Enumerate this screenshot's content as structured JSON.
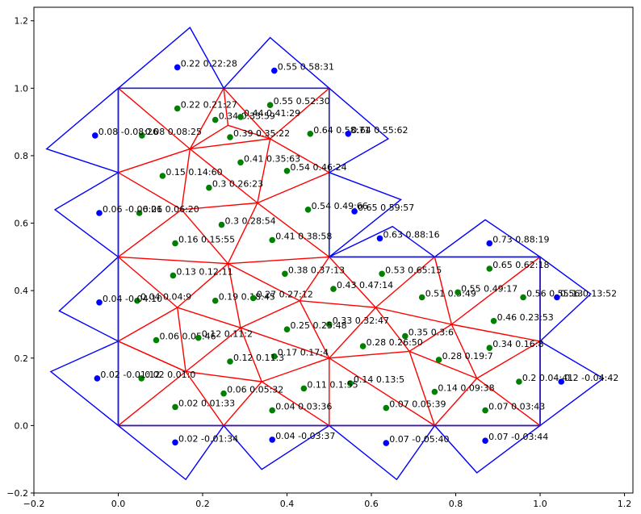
{
  "chart_data": {
    "type": "scatter",
    "title": "",
    "xlabel": "",
    "ylabel": "",
    "xlim": [
      -0.2,
      1.22
    ],
    "ylim": [
      -0.2,
      1.24
    ],
    "xticks": [
      "−0.2",
      "0.0",
      "0.2",
      "0.4",
      "0.6",
      "0.8",
      "1.0",
      "1.2"
    ],
    "xtick_values": [
      -0.2,
      0.0,
      0.2,
      0.4,
      0.6,
      0.8,
      1.0,
      1.2
    ],
    "yticks": [
      "−0.2",
      "0.0",
      "0.2",
      "0.4",
      "0.6",
      "0.8",
      "1.0",
      "1.2"
    ],
    "ytick_values": [
      -0.2,
      0.0,
      0.2,
      0.4,
      0.6,
      0.8,
      1.0,
      1.2
    ],
    "grid": false,
    "colors": {
      "domain_boundary": "#1f1fbf",
      "outer_triangles": "#0000ff",
      "inner_mesh": "#ff0000",
      "interior_points": "#008000",
      "outer_points": "#0000ff"
    },
    "domain_boundary": [
      [
        0,
        0
      ],
      [
        0,
        1
      ],
      [
        0.5,
        1
      ],
      [
        0.5,
        0.5
      ],
      [
        1,
        0.5
      ],
      [
        1,
        0
      ],
      [
        0,
        0
      ]
    ],
    "red_edges": [
      [
        [
          0,
          0
        ],
        [
          0.25,
          0
        ]
      ],
      [
        [
          0.25,
          0
        ],
        [
          0.5,
          0
        ]
      ],
      [
        [
          0.5,
          0
        ],
        [
          0.75,
          0
        ]
      ],
      [
        [
          0.75,
          0
        ],
        [
          1,
          0
        ]
      ],
      [
        [
          1,
          0
        ],
        [
          1,
          0.25
        ]
      ],
      [
        [
          1,
          0.25
        ],
        [
          1,
          0.5
        ]
      ],
      [
        [
          1,
          0.5
        ],
        [
          0.75,
          0.5
        ]
      ],
      [
        [
          0.75,
          0.5
        ],
        [
          0.5,
          0.5
        ]
      ],
      [
        [
          0.5,
          0.5
        ],
        [
          0.5,
          0.75
        ]
      ],
      [
        [
          0.5,
          0.75
        ],
        [
          0.5,
          1
        ]
      ],
      [
        [
          0.5,
          1
        ],
        [
          0.25,
          1
        ]
      ],
      [
        [
          0.25,
          1
        ],
        [
          0,
          1
        ]
      ],
      [
        [
          0,
          1
        ],
        [
          0,
          0.75
        ]
      ],
      [
        [
          0,
          0.75
        ],
        [
          0,
          0.5
        ]
      ],
      [
        [
          0,
          0.5
        ],
        [
          0,
          0.25
        ]
      ],
      [
        [
          0,
          0.25
        ],
        [
          0,
          0
        ]
      ],
      [
        [
          0,
          1
        ],
        [
          0.17,
          0.82
        ]
      ],
      [
        [
          0.25,
          1
        ],
        [
          0.17,
          0.82
        ]
      ],
      [
        [
          0.25,
          1
        ],
        [
          0.26,
          0.89
        ]
      ],
      [
        [
          0.25,
          1
        ],
        [
          0.36,
          0.85
        ]
      ],
      [
        [
          0.5,
          1
        ],
        [
          0.36,
          0.85
        ]
      ],
      [
        [
          0.17,
          0.82
        ],
        [
          0.26,
          0.89
        ]
      ],
      [
        [
          0.26,
          0.89
        ],
        [
          0.36,
          0.85
        ]
      ],
      [
        [
          0.17,
          0.82
        ],
        [
          0.36,
          0.85
        ]
      ],
      [
        [
          0,
          0.75
        ],
        [
          0.17,
          0.82
        ]
      ],
      [
        [
          0,
          0.75
        ],
        [
          0.15,
          0.64
        ]
      ],
      [
        [
          0.17,
          0.82
        ],
        [
          0.15,
          0.64
        ]
      ],
      [
        [
          0.17,
          0.82
        ],
        [
          0.33,
          0.66
        ]
      ],
      [
        [
          0.36,
          0.85
        ],
        [
          0.33,
          0.66
        ]
      ],
      [
        [
          0.5,
          0.75
        ],
        [
          0.36,
          0.85
        ]
      ],
      [
        [
          0.5,
          0.75
        ],
        [
          0.33,
          0.66
        ]
      ],
      [
        [
          0.5,
          0.5
        ],
        [
          0.33,
          0.66
        ]
      ],
      [
        [
          0.15,
          0.64
        ],
        [
          0.33,
          0.66
        ]
      ],
      [
        [
          0,
          0.5
        ],
        [
          0.15,
          0.64
        ]
      ],
      [
        [
          0.15,
          0.64
        ],
        [
          0.26,
          0.48
        ]
      ],
      [
        [
          0.33,
          0.66
        ],
        [
          0.26,
          0.48
        ]
      ],
      [
        [
          0.5,
          0.5
        ],
        [
          0.26,
          0.48
        ]
      ],
      [
        [
          0,
          0.5
        ],
        [
          0.26,
          0.48
        ]
      ],
      [
        [
          0,
          0.5
        ],
        [
          0.14,
          0.35
        ]
      ],
      [
        [
          0.26,
          0.48
        ],
        [
          0.14,
          0.35
        ]
      ],
      [
        [
          0.26,
          0.48
        ],
        [
          0.43,
          0.37
        ]
      ],
      [
        [
          0.5,
          0.5
        ],
        [
          0.43,
          0.37
        ]
      ],
      [
        [
          0.43,
          0.37
        ],
        [
          0.61,
          0.35
        ]
      ],
      [
        [
          0.5,
          0.5
        ],
        [
          0.61,
          0.35
        ]
      ],
      [
        [
          0.75,
          0.5
        ],
        [
          0.61,
          0.35
        ]
      ],
      [
        [
          0.75,
          0.5
        ],
        [
          0.79,
          0.3
        ]
      ],
      [
        [
          1,
          0.5
        ],
        [
          0.79,
          0.3
        ]
      ],
      [
        [
          1,
          0.25
        ],
        [
          0.79,
          0.3
        ]
      ],
      [
        [
          0.61,
          0.35
        ],
        [
          0.79,
          0.3
        ]
      ],
      [
        [
          0.26,
          0.48
        ],
        [
          0.29,
          0.29
        ]
      ],
      [
        [
          0.14,
          0.35
        ],
        [
          0.29,
          0.29
        ]
      ],
      [
        [
          0.29,
          0.29
        ],
        [
          0.43,
          0.37
        ]
      ],
      [
        [
          0.43,
          0.37
        ],
        [
          0.5,
          0.2
        ]
      ],
      [
        [
          0.61,
          0.35
        ],
        [
          0.5,
          0.2
        ]
      ],
      [
        [
          0.29,
          0.29
        ],
        [
          0.5,
          0.2
        ]
      ],
      [
        [
          0.61,
          0.35
        ],
        [
          0.69,
          0.22
        ]
      ],
      [
        [
          0.79,
          0.3
        ],
        [
          0.69,
          0.22
        ]
      ],
      [
        [
          0.5,
          0.2
        ],
        [
          0.69,
          0.22
        ]
      ],
      [
        [
          0,
          0.25
        ],
        [
          0.14,
          0.35
        ]
      ],
      [
        [
          0,
          0.25
        ],
        [
          0.16,
          0.16
        ]
      ],
      [
        [
          0.14,
          0.35
        ],
        [
          0.16,
          0.16
        ]
      ],
      [
        [
          0.29,
          0.29
        ],
        [
          0.16,
          0.16
        ]
      ],
      [
        [
          0.29,
          0.29
        ],
        [
          0.34,
          0.13
        ]
      ],
      [
        [
          0.16,
          0.16
        ],
        [
          0.34,
          0.13
        ]
      ],
      [
        [
          0.5,
          0.2
        ],
        [
          0.34,
          0.13
        ]
      ],
      [
        [
          0.5,
          0.2
        ],
        [
          0.5,
          0
        ]
      ],
      [
        [
          0.34,
          0.13
        ],
        [
          0.5,
          0
        ]
      ],
      [
        [
          0.34,
          0.13
        ],
        [
          0.25,
          0
        ]
      ],
      [
        [
          0.16,
          0.16
        ],
        [
          0.25,
          0
        ]
      ],
      [
        [
          0,
          0.25
        ],
        [
          0.16,
          0.16
        ]
      ],
      [
        [
          0,
          0
        ],
        [
          0.16,
          0.16
        ]
      ],
      [
        [
          0.5,
          0.2
        ],
        [
          0.75,
          0
        ]
      ],
      [
        [
          0.69,
          0.22
        ],
        [
          0.75,
          0
        ]
      ],
      [
        [
          0.69,
          0.22
        ],
        [
          0.85,
          0.14
        ]
      ],
      [
        [
          0.79,
          0.3
        ],
        [
          0.85,
          0.14
        ]
      ],
      [
        [
          1,
          0.25
        ],
        [
          0.85,
          0.14
        ]
      ],
      [
        [
          1,
          0
        ],
        [
          0.85,
          0.14
        ]
      ],
      [
        [
          0.75,
          0
        ],
        [
          0.85,
          0.14
        ]
      ]
    ],
    "outer_triangles": [
      [
        [
          0,
          1
        ],
        [
          0.25,
          1
        ],
        [
          0.17,
          1.18
        ]
      ],
      [
        [
          0.25,
          1
        ],
        [
          0.5,
          1
        ],
        [
          0.36,
          1.15
        ]
      ],
      [
        [
          0,
          1
        ],
        [
          0,
          0.75
        ],
        [
          -0.17,
          0.82
        ]
      ],
      [
        [
          0,
          0.75
        ],
        [
          0,
          0.5
        ],
        [
          -0.15,
          0.64
        ]
      ],
      [
        [
          0,
          0.5
        ],
        [
          0,
          0.25
        ],
        [
          -0.14,
          0.34
        ]
      ],
      [
        [
          0,
          0.25
        ],
        [
          0,
          0
        ],
        [
          -0.16,
          0.16
        ]
      ],
      [
        [
          0,
          0
        ],
        [
          0.25,
          0
        ],
        [
          0.16,
          -0.16
        ]
      ],
      [
        [
          0.25,
          0
        ],
        [
          0.5,
          0
        ],
        [
          0.34,
          -0.13
        ]
      ],
      [
        [
          0.5,
          0
        ],
        [
          0.75,
          0
        ],
        [
          0.66,
          -0.16
        ]
      ],
      [
        [
          0.75,
          0
        ],
        [
          1,
          0
        ],
        [
          0.85,
          -0.14
        ]
      ],
      [
        [
          1,
          0
        ],
        [
          1,
          0.25
        ],
        [
          1.15,
          0.14
        ]
      ],
      [
        [
          1,
          0.25
        ],
        [
          1,
          0.5
        ],
        [
          1.12,
          0.39
        ]
      ],
      [
        [
          1,
          0.5
        ],
        [
          0.75,
          0.5
        ],
        [
          0.87,
          0.61
        ]
      ],
      [
        [
          0.75,
          0.5
        ],
        [
          0.5,
          0.5
        ],
        [
          0.65,
          0.59
        ]
      ],
      [
        [
          0.5,
          0.5
        ],
        [
          0.5,
          0.75
        ],
        [
          0.67,
          0.67
        ]
      ],
      [
        [
          0.5,
          0.75
        ],
        [
          0.5,
          1
        ],
        [
          0.64,
          0.85
        ]
      ]
    ],
    "interior_points": [
      {
        "x": 0.14,
        "y": 0.94,
        "label": "0.22 0.21:27"
      },
      {
        "x": 0.056,
        "y": 0.86,
        "label": "0.08 0.08:25"
      },
      {
        "x": 0.23,
        "y": 0.906,
        "label": "0.34 0.33:59"
      },
      {
        "x": 0.29,
        "y": 0.915,
        "label": "0.44 0.41:29"
      },
      {
        "x": 0.36,
        "y": 0.95,
        "label": "0.55 0.52:30"
      },
      {
        "x": 0.265,
        "y": 0.855,
        "label": "0.39 0.35:22"
      },
      {
        "x": 0.455,
        "y": 0.865,
        "label": "0.64 0.58:71"
      },
      {
        "x": 0.29,
        "y": 0.78,
        "label": "0.41 0.35:63"
      },
      {
        "x": 0.105,
        "y": 0.74,
        "label": "0.15 0.14:60"
      },
      {
        "x": 0.4,
        "y": 0.755,
        "label": "0.54 0.46:24"
      },
      {
        "x": 0.215,
        "y": 0.705,
        "label": "0.3 0.26:23"
      },
      {
        "x": 0.05,
        "y": 0.63,
        "label": "0.06 0.06:20"
      },
      {
        "x": 0.45,
        "y": 0.64,
        "label": "0.54 0.49:66"
      },
      {
        "x": 0.245,
        "y": 0.595,
        "label": "0.3 0.28:54"
      },
      {
        "x": 0.135,
        "y": 0.54,
        "label": "0.16 0.15:55"
      },
      {
        "x": 0.365,
        "y": 0.55,
        "label": "0.41 0.38:58"
      },
      {
        "x": 0.13,
        "y": 0.445,
        "label": "0.13 0.12:11"
      },
      {
        "x": 0.395,
        "y": 0.45,
        "label": "0.38 0.37:13"
      },
      {
        "x": 0.625,
        "y": 0.45,
        "label": "0.53 0.65:15"
      },
      {
        "x": 0.88,
        "y": 0.465,
        "label": "0.65 0.62:18"
      },
      {
        "x": 0.045,
        "y": 0.37,
        "label": "0.04 0.04:9"
      },
      {
        "x": 0.23,
        "y": 0.37,
        "label": "0.19 0.18:45"
      },
      {
        "x": 0.32,
        "y": 0.378,
        "label": "0.27 0.27:12"
      },
      {
        "x": 0.51,
        "y": 0.405,
        "label": "0.43 0.47:14"
      },
      {
        "x": 0.72,
        "y": 0.38,
        "label": "0.51 0.5:49"
      },
      {
        "x": 0.805,
        "y": 0.395,
        "label": "0.55 0.49:17"
      },
      {
        "x": 0.96,
        "y": 0.38,
        "label": "0.56 0.55:13"
      },
      {
        "x": 0.5,
        "y": 0.3,
        "label": "0.33 0.32:47"
      },
      {
        "x": 0.89,
        "y": 0.31,
        "label": "0.46 0.23:53"
      },
      {
        "x": 0.4,
        "y": 0.285,
        "label": "0.25 0.25:48"
      },
      {
        "x": 0.09,
        "y": 0.253,
        "label": "0.06 0.05:46"
      },
      {
        "x": 0.19,
        "y": 0.26,
        "label": "0.12 0.11:2"
      },
      {
        "x": 0.68,
        "y": 0.265,
        "label": "0.35 0.3:6"
      },
      {
        "x": 0.58,
        "y": 0.235,
        "label": "0.28 0.26:50"
      },
      {
        "x": 0.88,
        "y": 0.23,
        "label": "0.34 0.16:8"
      },
      {
        "x": 0.37,
        "y": 0.205,
        "label": "0.17 0.17:4"
      },
      {
        "x": 0.265,
        "y": 0.19,
        "label": "0.12 0.11:3"
      },
      {
        "x": 0.76,
        "y": 0.195,
        "label": "0.28 0.19:7"
      },
      {
        "x": 0.055,
        "y": 0.14,
        "label": "0.02 0.01:0"
      },
      {
        "x": 0.55,
        "y": 0.125,
        "label": "0.14 0.13:5"
      },
      {
        "x": 0.44,
        "y": 0.11,
        "label": "0.11 0.1:55"
      },
      {
        "x": 0.95,
        "y": 0.13,
        "label": "0.2 0.04:41"
      },
      {
        "x": 0.25,
        "y": 0.095,
        "label": "0.06 0.05:32"
      },
      {
        "x": 0.75,
        "y": 0.1,
        "label": "0.14 0.09:38"
      },
      {
        "x": 0.135,
        "y": 0.055,
        "label": "0.02 0.01:33"
      },
      {
        "x": 0.365,
        "y": 0.045,
        "label": "0.04 0.03:36"
      },
      {
        "x": 0.635,
        "y": 0.052,
        "label": "0.07 0.05:39"
      },
      {
        "x": 0.87,
        "y": 0.045,
        "label": "0.07 0.03:43"
      }
    ],
    "outer_points": [
      {
        "x": 0.14,
        "y": 1.062,
        "label": "0.22 0.22:28"
      },
      {
        "x": 0.37,
        "y": 1.052,
        "label": "0.55 0.58:31"
      },
      {
        "x": -0.055,
        "y": 0.86,
        "label": "0.08 -0.08:26"
      },
      {
        "x": 0.545,
        "y": 0.865,
        "label": "0.64 0.55:62"
      },
      {
        "x": -0.045,
        "y": 0.63,
        "label": "0.06 -0.06:21"
      },
      {
        "x": 0.56,
        "y": 0.635,
        "label": "0.65 0.59:57"
      },
      {
        "x": 0.62,
        "y": 0.555,
        "label": "0.63 0.88:16"
      },
      {
        "x": 0.88,
        "y": 0.54,
        "label": "0.73 0.88:19"
      },
      {
        "x": -0.045,
        "y": 0.365,
        "label": "0.04 -0.04:10"
      },
      {
        "x": 1.04,
        "y": 0.38,
        "label": "0.56 0.13:52"
      },
      {
        "x": -0.05,
        "y": 0.14,
        "label": "0.02 -0.01:12"
      },
      {
        "x": 1.05,
        "y": 0.13,
        "label": "0.2 -0.04:42"
      },
      {
        "x": 0.135,
        "y": -0.05,
        "label": "0.02 -0.01:34"
      },
      {
        "x": 0.365,
        "y": -0.042,
        "label": "0.04 -0.03:37"
      },
      {
        "x": 0.635,
        "y": -0.052,
        "label": "0.07 -0.05:40"
      },
      {
        "x": 0.87,
        "y": -0.045,
        "label": "0.07 -0.03:44"
      }
    ]
  }
}
